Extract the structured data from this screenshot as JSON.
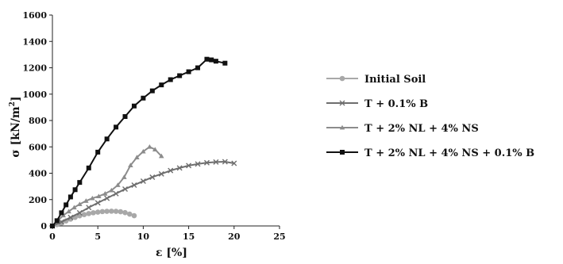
{
  "chart_data": {
    "type": "line",
    "xlabel": "ε [%]",
    "ylabel_main": "σ [kN/m",
    "ylabel_sup": "2",
    "ylabel_close": "]",
    "xlim": [
      0,
      25
    ],
    "ylim": [
      0,
      1600
    ],
    "x_ticks": [
      "0",
      "5",
      "10",
      "15",
      "20",
      "25"
    ],
    "y_ticks": [
      "0",
      "200",
      "400",
      "600",
      "800",
      "1000",
      "1200",
      "1400",
      "1600"
    ],
    "grid": false,
    "legend_position": "right",
    "series": [
      {
        "name": "Initial Soil",
        "color": "#a8a8a8",
        "marker": "circle",
        "x": [
          0,
          0.5,
          1,
          1.5,
          2,
          2.5,
          3,
          3.5,
          4,
          4.5,
          5,
          5.5,
          6,
          6.5,
          7,
          7.5,
          8,
          8.5,
          9
        ],
        "y": [
          0,
          10,
          22,
          38,
          52,
          65,
          77,
          86,
          94,
          100,
          105,
          109,
          111,
          112,
          111,
          108,
          101,
          90,
          78
        ]
      },
      {
        "name": "T + 0.1% B",
        "color": "#6e6e6e",
        "marker": "x",
        "x": [
          0,
          1,
          2,
          3,
          4,
          5,
          6,
          7,
          8,
          9,
          10,
          11,
          12,
          13,
          14,
          15,
          16,
          17,
          18,
          19,
          20
        ],
        "y": [
          0,
          30,
          65,
          100,
          140,
          175,
          210,
          245,
          280,
          310,
          340,
          370,
          395,
          420,
          440,
          458,
          470,
          480,
          485,
          487,
          475
        ]
      },
      {
        "name": "T + 2% NL + 4% NS",
        "color": "#8c8c8c",
        "marker": "triangle",
        "x": [
          0,
          0.6,
          1.2,
          1.8,
          2.4,
          3,
          3.7,
          4.4,
          5.1,
          5.8,
          6.5,
          7.2,
          7.9,
          8.6,
          9.3,
          10,
          10.7,
          11.3,
          12
        ],
        "y": [
          0,
          40,
          80,
          110,
          140,
          165,
          190,
          210,
          225,
          245,
          270,
          310,
          370,
          460,
          520,
          565,
          600,
          580,
          530
        ]
      },
      {
        "name": "T + 2% NL + 4% NS + 0.1% B",
        "color": "#111111",
        "marker": "square",
        "x": [
          0,
          0.5,
          1,
          1.5,
          2,
          2.5,
          3,
          4,
          5,
          6,
          7,
          8,
          9,
          10,
          11,
          12,
          13,
          14,
          15,
          16,
          17,
          17.5,
          18,
          19
        ],
        "y": [
          0,
          40,
          100,
          160,
          220,
          275,
          330,
          440,
          560,
          660,
          750,
          830,
          910,
          970,
          1025,
          1070,
          1110,
          1140,
          1170,
          1200,
          1265,
          1260,
          1250,
          1235
        ]
      }
    ]
  }
}
